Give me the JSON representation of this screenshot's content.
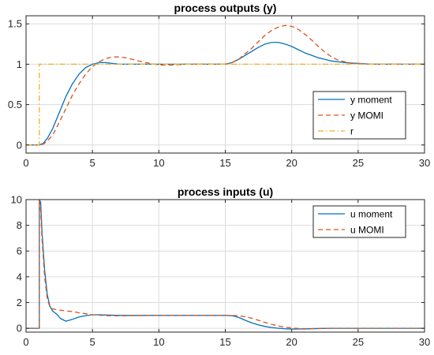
{
  "chart_data": [
    {
      "type": "line",
      "title": "process outputs (y)",
      "xlabel": "",
      "ylabel": "",
      "xlim": [
        0,
        30
      ],
      "ylim": [
        -0.1,
        1.6
      ],
      "xticks": [
        0,
        5,
        10,
        15,
        20,
        25,
        30
      ],
      "yticks": [
        0,
        0.5,
        1,
        1.5
      ],
      "xtick_labels": [
        "0",
        "5",
        "10",
        "15",
        "20",
        "25",
        "30"
      ],
      "ytick_labels": [
        "0",
        "0.5",
        "1",
        "1.5"
      ],
      "grid": true,
      "legend_position": "lower-right",
      "series": [
        {
          "name": "y moment",
          "color": "#0072BD",
          "dash": "solid",
          "x": [
            0,
            1.0,
            1.3,
            1.6,
            2.0,
            2.5,
            3.0,
            3.5,
            4.0,
            4.5,
            5.0,
            5.5,
            6.0,
            6.5,
            7.0,
            8.0,
            9.0,
            10.0,
            11.0,
            12.0,
            13.0,
            14.0,
            15.0,
            15.5,
            16.0,
            16.5,
            17.0,
            17.5,
            18.0,
            18.5,
            19.0,
            19.5,
            20.0,
            20.5,
            21.0,
            21.5,
            22.0,
            22.5,
            23.0,
            24.0,
            25.0,
            26.0,
            27.0,
            28.0,
            30.0
          ],
          "y": [
            0,
            0,
            0.02,
            0.08,
            0.2,
            0.4,
            0.6,
            0.76,
            0.88,
            0.96,
            1.0,
            1.02,
            1.02,
            1.01,
            1.0,
            1.0,
            1.0,
            1.0,
            1.0,
            1.0,
            1.0,
            1.0,
            1.0,
            1.02,
            1.06,
            1.11,
            1.16,
            1.21,
            1.25,
            1.27,
            1.27,
            1.25,
            1.22,
            1.18,
            1.14,
            1.11,
            1.08,
            1.06,
            1.04,
            1.02,
            1.01,
            1.0,
            1.0,
            1.0,
            1.0
          ]
        },
        {
          "name": "y MOMI",
          "color": "#D95319",
          "dash": "dashed",
          "x": [
            0,
            1.0,
            1.3,
            1.6,
            2.0,
            2.5,
            3.0,
            3.5,
            4.0,
            4.5,
            5.0,
            5.5,
            6.0,
            6.5,
            7.0,
            7.5,
            8.0,
            8.5,
            9.0,
            10.0,
            11.0,
            12.0,
            13.0,
            14.0,
            15.0,
            15.5,
            16.0,
            16.5,
            17.0,
            17.5,
            18.0,
            18.5,
            19.0,
            19.5,
            20.0,
            20.5,
            21.0,
            21.5,
            22.0,
            22.5,
            23.0,
            23.5,
            24.0,
            24.5,
            25.0,
            26.0,
            27.0,
            28.0,
            30.0
          ],
          "y": [
            0,
            0,
            0.01,
            0.05,
            0.12,
            0.28,
            0.45,
            0.62,
            0.76,
            0.88,
            0.97,
            1.03,
            1.07,
            1.09,
            1.09,
            1.08,
            1.06,
            1.04,
            1.02,
            0.99,
            0.99,
            1.0,
            1.0,
            1.0,
            1.0,
            1.02,
            1.06,
            1.13,
            1.2,
            1.28,
            1.36,
            1.42,
            1.46,
            1.48,
            1.47,
            1.43,
            1.37,
            1.3,
            1.22,
            1.15,
            1.09,
            1.05,
            1.03,
            1.01,
            1.01,
            1.0,
            1.0,
            1.0,
            1.0
          ]
        },
        {
          "name": "r",
          "color": "#EDB120",
          "dash": "dashdot",
          "x": [
            0,
            1.0,
            1.0,
            30.0
          ],
          "y": [
            0,
            0,
            1.0,
            1.0
          ]
        }
      ]
    },
    {
      "type": "line",
      "title": "process inputs (u)",
      "xlabel": "",
      "ylabel": "",
      "xlim": [
        0,
        30
      ],
      "ylim": [
        -0.3,
        10
      ],
      "xticks": [
        0,
        5,
        10,
        15,
        20,
        25,
        30
      ],
      "yticks": [
        0,
        2,
        4,
        6,
        8,
        10
      ],
      "xtick_labels": [
        "0",
        "5",
        "10",
        "15",
        "20",
        "25",
        "30"
      ],
      "ytick_labels": [
        "0",
        "2",
        "4",
        "6",
        "8",
        "10"
      ],
      "grid": true,
      "legend_position": "upper-right",
      "series": [
        {
          "name": "u moment",
          "color": "#0072BD",
          "dash": "solid",
          "x": [
            0,
            1.0,
            1.0,
            1.1,
            1.2,
            1.4,
            1.6,
            1.8,
            2.0,
            2.3,
            2.6,
            3.0,
            3.5,
            4.0,
            4.5,
            5.0,
            5.5,
            6.0,
            7.0,
            8.0,
            10.0,
            12.0,
            14.0,
            15.0,
            15.5,
            16.0,
            16.5,
            17.0,
            17.5,
            18.0,
            18.5,
            19.0,
            19.5,
            20.0,
            21.0,
            22.0,
            23.0,
            25.0,
            30.0
          ],
          "y": [
            0,
            0,
            10.0,
            9.8,
            7.5,
            4.5,
            2.6,
            1.7,
            1.35,
            1.1,
            0.75,
            0.55,
            0.7,
            0.88,
            0.98,
            1.05,
            1.05,
            1.03,
            1.0,
            1.0,
            1.0,
            1.0,
            1.0,
            1.0,
            0.98,
            0.85,
            0.62,
            0.42,
            0.26,
            0.14,
            0.05,
            0.0,
            -0.04,
            -0.06,
            -0.05,
            -0.02,
            0.0,
            0.0,
            0.0
          ]
        },
        {
          "name": "u MOMI",
          "color": "#D95319",
          "dash": "dashed",
          "x": [
            0,
            1.0,
            1.0,
            1.1,
            1.2,
            1.4,
            1.6,
            1.8,
            2.0,
            2.5,
            3.0,
            3.5,
            4.0,
            5.0,
            6.0,
            7.0,
            8.0,
            10.0,
            12.0,
            14.0,
            15.0,
            15.5,
            16.0,
            16.5,
            17.0,
            17.5,
            18.0,
            18.5,
            19.0,
            19.5,
            20.0,
            20.5,
            21.0,
            22.0,
            23.0,
            25.0,
            30.0
          ],
          "y": [
            0,
            0,
            10.0,
            9.2,
            7.0,
            4.0,
            2.3,
            1.65,
            1.5,
            1.42,
            1.35,
            1.3,
            1.2,
            1.05,
            0.98,
            0.97,
            0.98,
            1.0,
            1.0,
            1.0,
            1.0,
            1.0,
            0.97,
            0.9,
            0.78,
            0.62,
            0.45,
            0.3,
            0.18,
            0.08,
            0.02,
            -0.02,
            -0.03,
            -0.02,
            0.0,
            0.0,
            0.0
          ]
        }
      ]
    }
  ]
}
